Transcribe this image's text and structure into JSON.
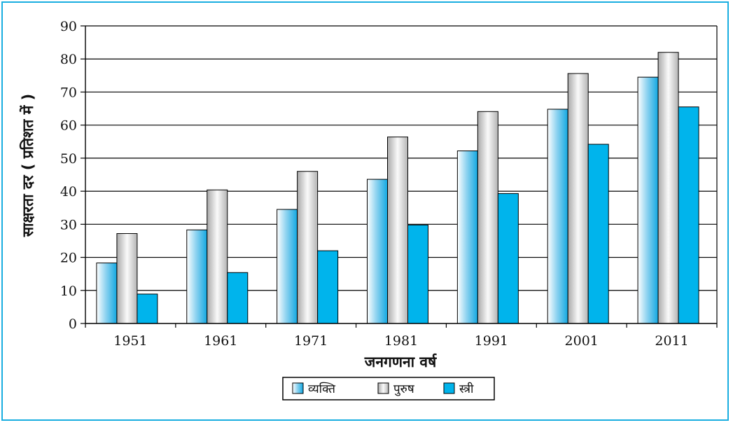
{
  "chart_data": {
    "type": "bar",
    "categories": [
      "1951",
      "1961",
      "1971",
      "1981",
      "1991",
      "2001",
      "2011"
    ],
    "series": [
      {
        "name": "व्यक्ति",
        "values": [
          18.3,
          28.3,
          34.5,
          43.6,
          52.2,
          64.8,
          74.5
        ],
        "color": "#3fb5e4"
      },
      {
        "name": "पुरुष",
        "values": [
          27.2,
          40.4,
          46.0,
          56.4,
          64.1,
          75.6,
          82.0
        ],
        "color": "#d2d2d2"
      },
      {
        "name": "स्त्री",
        "values": [
          8.9,
          15.4,
          22.0,
          29.8,
          39.3,
          54.2,
          65.5
        ],
        "color": "#00b4ec"
      }
    ],
    "title": "",
    "xlabel": "जनगणना वर्ष",
    "ylabel": "साक्षरता दर ( प्रतिशत में )",
    "ylim": [
      0,
      90
    ],
    "yticks": [
      "0",
      "10",
      "20",
      "30",
      "40",
      "50",
      "60",
      "70",
      "80",
      "90"
    ],
    "grid": true,
    "legend_position": "bottom"
  },
  "colors": {
    "frame": "#19aee0",
    "grid": "#000000"
  }
}
